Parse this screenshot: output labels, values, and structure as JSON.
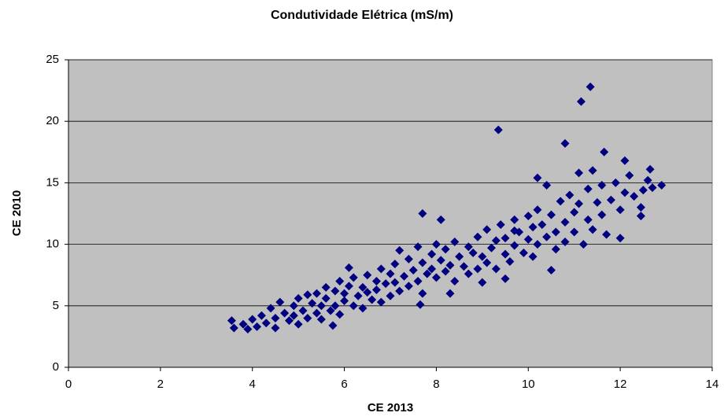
{
  "chart_data": {
    "type": "scatter",
    "title": "Condutividade Elétrica (mS/m)",
    "x_label": "CE 2013",
    "y_label": "CE 2010",
    "color": "#000080",
    "grid": true,
    "xlim": [
      0,
      14
    ],
    "xticks": [
      0,
      2,
      4,
      6,
      8,
      10,
      12,
      14
    ],
    "ylim": [
      0,
      25
    ],
    "yticks": [
      0,
      5,
      10,
      15,
      20,
      25
    ],
    "x": [
      3.6,
      3.8,
      3.9,
      4.0,
      4.1,
      4.2,
      4.3,
      4.4,
      4.5,
      4.5,
      4.6,
      4.7,
      4.8,
      4.9,
      4.9,
      5.0,
      5.0,
      5.1,
      5.2,
      5.2,
      5.3,
      5.4,
      5.4,
      5.5,
      5.5,
      5.6,
      5.6,
      5.7,
      5.8,
      5.8,
      5.9,
      5.9,
      6.0,
      6.0,
      6.1,
      6.1,
      6.2,
      6.2,
      6.3,
      6.4,
      6.4,
      6.5,
      6.5,
      6.6,
      6.7,
      6.7,
      6.8,
      6.8,
      6.9,
      7.0,
      7.0,
      7.1,
      7.1,
      7.2,
      7.2,
      7.3,
      7.4,
      7.4,
      7.5,
      7.6,
      7.6,
      7.7,
      7.7,
      7.8,
      7.9,
      7.9,
      8.0,
      8.0,
      8.1,
      8.2,
      8.2,
      8.3,
      8.4,
      8.4,
      8.5,
      8.6,
      8.7,
      8.7,
      8.8,
      8.9,
      8.9,
      9.0,
      9.0,
      9.1,
      9.1,
      9.2,
      9.3,
      9.3,
      9.4,
      9.5,
      9.5,
      9.6,
      9.7,
      9.7,
      9.8,
      9.9,
      10.0,
      10.0,
      10.1,
      10.1,
      10.2,
      10.2,
      10.3,
      10.4,
      10.4,
      10.5,
      10.6,
      10.6,
      10.7,
      10.8,
      10.8,
      10.9,
      11.0,
      11.0,
      11.1,
      11.1,
      11.2,
      11.3,
      11.3,
      11.4,
      11.4,
      11.5,
      11.6,
      11.6,
      11.7,
      11.8,
      11.9,
      12.0,
      12.0,
      12.1,
      12.2,
      12.3,
      12.5,
      12.6,
      12.7,
      10.2,
      9.7,
      9.35,
      11.15,
      11.35,
      10.8,
      11.65,
      12.1,
      12.65,
      12.9,
      7.7,
      8.1,
      3.55,
      5.75,
      7.65,
      8.3,
      10.5,
      9.5,
      12.45,
      12.45
    ],
    "values": [
      3.2,
      3.5,
      3.1,
      3.9,
      3.3,
      4.2,
      3.6,
      4.8,
      4.0,
      3.2,
      5.3,
      4.4,
      3.8,
      5.0,
      4.2,
      5.6,
      3.5,
      4.6,
      5.9,
      4.0,
      5.2,
      6.0,
      4.4,
      5.0,
      3.9,
      6.5,
      5.6,
      4.6,
      6.2,
      5.0,
      7.0,
      4.3,
      6.0,
      5.4,
      8.1,
      6.6,
      5.0,
      7.3,
      5.8,
      6.5,
      4.8,
      7.5,
      6.1,
      5.5,
      7.0,
      6.3,
      8.0,
      5.3,
      6.8,
      7.6,
      5.8,
      8.4,
      6.9,
      9.5,
      6.2,
      7.4,
      8.8,
      6.6,
      7.9,
      9.8,
      7.0,
      8.5,
      6.0,
      7.6,
      9.2,
      8.0,
      10.0,
      7.3,
      8.7,
      9.6,
      7.8,
      8.3,
      10.2,
      7.0,
      9.0,
      8.2,
      9.8,
      7.6,
      9.3,
      10.6,
      8.0,
      9.0,
      6.9,
      11.2,
      8.5,
      9.7,
      10.3,
      8.0,
      11.6,
      9.2,
      10.5,
      8.6,
      12.0,
      9.9,
      11.0,
      9.3,
      12.3,
      10.4,
      11.4,
      9.0,
      12.8,
      10.0,
      11.6,
      14.8,
      10.6,
      12.4,
      11.0,
      9.6,
      13.5,
      11.8,
      10.2,
      14.0,
      12.6,
      11.0,
      15.8,
      13.3,
      10.0,
      12.0,
      14.5,
      16.0,
      11.2,
      13.4,
      12.4,
      14.8,
      10.8,
      13.6,
      15.0,
      12.8,
      10.5,
      14.2,
      15.6,
      13.9,
      14.4,
      15.2,
      14.6,
      15.4,
      11.1,
      19.3,
      21.6,
      22.8,
      18.2,
      17.5,
      16.8,
      16.1,
      14.8,
      12.5,
      12.0,
      3.8,
      3.4,
      5.1,
      6.0,
      7.9,
      7.2,
      12.3,
      13.0
    ]
  }
}
